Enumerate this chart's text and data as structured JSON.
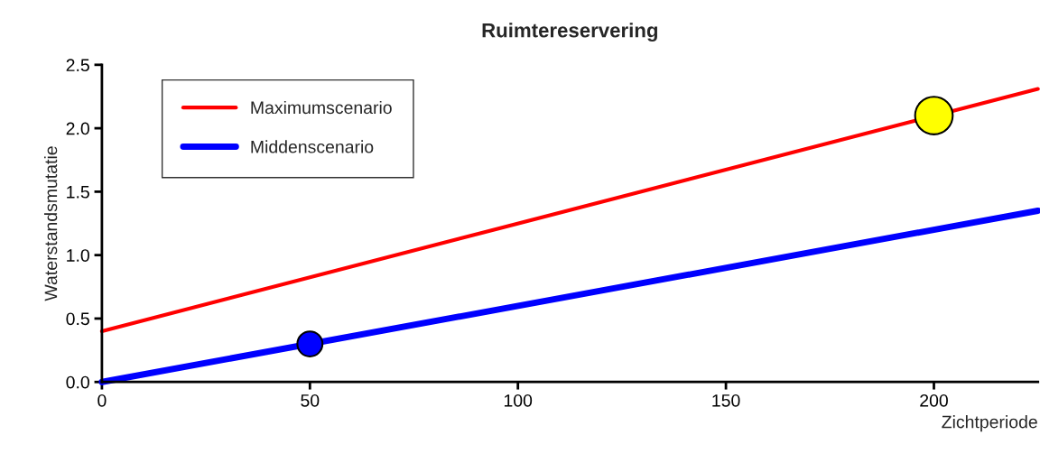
{
  "chart_data": {
    "type": "line",
    "title": "Ruimtereservering",
    "xlabel": "Zichtperiode",
    "ylabel": "Waterstandsmutatie",
    "xlim": [
      0,
      225
    ],
    "xticks": [
      0,
      50,
      100,
      150,
      200
    ],
    "ylim": [
      0,
      2.5
    ],
    "yticks": [
      {
        "value": 0,
        "label": "0.0"
      },
      {
        "value": 0.5,
        "label": "0.5"
      },
      {
        "value": 1,
        "label": "1.0"
      },
      {
        "value": 1.5,
        "label": "1.5"
      },
      {
        "value": 2,
        "label": "2.0"
      },
      {
        "value": 2.5,
        "label": "2.5"
      }
    ],
    "grid": false,
    "legend": "top left",
    "marker": "none",
    "line_style": "solid",
    "series": [
      {
        "name": "Maximumscenario",
        "color": "#ff0000",
        "x": [
          0,
          225
        ],
        "values": [
          0.4,
          2.31
        ]
      },
      {
        "name": "Middenscenario",
        "color": "#0000ff",
        "x": [
          0,
          225
        ],
        "values": [
          0,
          1.35
        ]
      },
      {
        "type": "scatter",
        "marker": "circle",
        "color": "#ffff00",
        "x": [
          200
        ],
        "values": [
          2.1
        ]
      },
      {
        "type": "scatter",
        "marker": "circle",
        "color": "#0000ff",
        "x": [
          50
        ],
        "values": [
          0.3
        ]
      }
    ]
  }
}
